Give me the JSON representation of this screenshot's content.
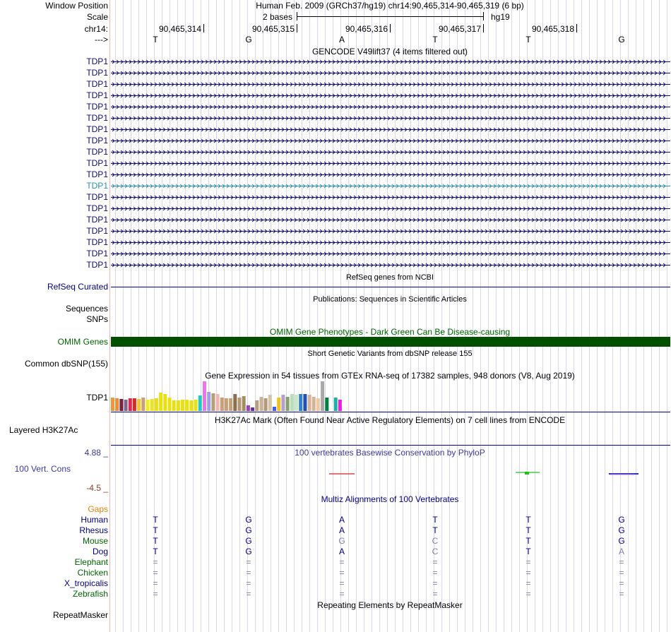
{
  "header": {
    "window_label": "Window Position",
    "window_title": "Human Feb. 2009 (GRCh37/hg19)   chr14:90,465,314-90,465,319 (6 bp)",
    "scale_label": "Scale",
    "scale_value": "2 bases",
    "scale_assembly": "hg19",
    "chrom_label": "chr14:",
    "strand_label": "--->",
    "positions": [
      "90,465,314",
      "90,465,315",
      "90,465,316",
      "90,465,317",
      "90,465,318"
    ],
    "bases": [
      "T",
      "G",
      "A",
      "T",
      "T",
      "G"
    ]
  },
  "gencode": {
    "title": "GENCODE V49lift37 (4 items filtered out)",
    "rows": [
      {
        "label": "TDP1",
        "highlight": false
      },
      {
        "label": "TDP1",
        "highlight": false
      },
      {
        "label": "TDP1",
        "highlight": false
      },
      {
        "label": "TDP1",
        "highlight": false
      },
      {
        "label": "TDP1",
        "highlight": false
      },
      {
        "label": "TDP1",
        "highlight": false
      },
      {
        "label": "TDP1",
        "highlight": false
      },
      {
        "label": "TDP1",
        "highlight": false
      },
      {
        "label": "TDP1",
        "highlight": false
      },
      {
        "label": "TDP1",
        "highlight": false
      },
      {
        "label": "TDP1",
        "highlight": false
      },
      {
        "label": "TDP1",
        "highlight": true
      },
      {
        "label": "TDP1",
        "highlight": false
      },
      {
        "label": "TDP1",
        "highlight": false
      },
      {
        "label": "TDP1",
        "highlight": false
      },
      {
        "label": "TDP1",
        "highlight": false
      },
      {
        "label": "TDP1",
        "highlight": false
      },
      {
        "label": "TDP1",
        "highlight": false
      },
      {
        "label": "TDP1",
        "highlight": false
      }
    ]
  },
  "refseq": {
    "title": "RefSeq genes from NCBI",
    "label": "RefSeq Curated"
  },
  "publications": {
    "title": "Publications: Sequences in Scientific Articles",
    "label_sequences": "Sequences",
    "label_snps": "SNPs"
  },
  "omim": {
    "title": "OMIM Gene Phenotypes - Dark Green Can Be Disease-causing",
    "label": "OMIM Genes",
    "color": "#005000"
  },
  "dbsnp": {
    "title": "Short Genetic Variants from dbSNP release 155",
    "label": "Common dbSNP(155)"
  },
  "gtex": {
    "title": "Gene Expression in 54 tissues from GTEx RNA-seq of 17382 samples, 948 donors (V8, Aug 2019)",
    "label": "TDP1",
    "bars": [
      {
        "value": 0.45,
        "color": "#f0963c"
      },
      {
        "value": 0.42,
        "color": "#f08c32"
      },
      {
        "value": 0.4,
        "color": "#7a2040"
      },
      {
        "value": 0.38,
        "color": "#7a6a88"
      },
      {
        "value": 0.42,
        "color": "#e02850"
      },
      {
        "value": 0.42,
        "color": "#d03020"
      },
      {
        "value": 0.4,
        "color": "#f0c828"
      },
      {
        "value": 0.45,
        "color": "#c8a078"
      },
      {
        "value": 0.38,
        "color": "#f0ec20"
      },
      {
        "value": 0.4,
        "color": "#ece420"
      },
      {
        "value": 0.42,
        "color": "#e8e010"
      },
      {
        "value": 0.62,
        "color": "#e8e010"
      },
      {
        "value": 0.58,
        "color": "#e8e010"
      },
      {
        "value": 0.45,
        "color": "#e8e010"
      },
      {
        "value": 0.35,
        "color": "#e8e010"
      },
      {
        "value": 0.35,
        "color": "#e8e010"
      },
      {
        "value": 0.38,
        "color": "#e8e010"
      },
      {
        "value": 0.38,
        "color": "#e8e010"
      },
      {
        "value": 0.35,
        "color": "#e8e010"
      },
      {
        "value": 0.38,
        "color": "#e8e010"
      },
      {
        "value": 0.52,
        "color": "#20c8c8"
      },
      {
        "value": 1.0,
        "color": "#e878e8"
      },
      {
        "value": 0.65,
        "color": "#a0a0e8"
      },
      {
        "value": 0.6,
        "color": "#b4a078"
      },
      {
        "value": 0.58,
        "color": "#f0b4b4"
      },
      {
        "value": 0.45,
        "color": "#c8a078"
      },
      {
        "value": 0.42,
        "color": "#c8a078"
      },
      {
        "value": 0.42,
        "color": "#c8a078"
      },
      {
        "value": 0.58,
        "color": "#887050"
      },
      {
        "value": 0.45,
        "color": "#b49878"
      },
      {
        "value": 0.5,
        "color": "#a09060"
      },
      {
        "value": 0.18,
        "color": "#a040c0"
      },
      {
        "value": 0.12,
        "color": "#6030a0"
      },
      {
        "value": 0.35,
        "color": "#b4a080"
      },
      {
        "value": 0.48,
        "color": "#c8b498"
      },
      {
        "value": 0.42,
        "color": "#b49878"
      },
      {
        "value": 0.55,
        "color": "#d4c4a8"
      },
      {
        "value": 0.15,
        "color": "#4060f0"
      },
      {
        "value": 0.45,
        "color": "#f0c020"
      },
      {
        "value": 0.55,
        "color": "#b4a0c8"
      },
      {
        "value": 0.48,
        "color": "#88a070"
      },
      {
        "value": 0.58,
        "color": "#b4e0b4"
      },
      {
        "value": 0.55,
        "color": "#c8e8c8"
      },
      {
        "value": 0.58,
        "color": "#3080d0"
      },
      {
        "value": 0.58,
        "color": "#2050b0"
      },
      {
        "value": 0.55,
        "color": "#d4b498"
      },
      {
        "value": 0.48,
        "color": "#d4b498"
      },
      {
        "value": 0.42,
        "color": "#f0c8a0"
      },
      {
        "value": 1.0,
        "color": "#a8a8a8"
      },
      {
        "value": 0.45,
        "color": "#008040"
      },
      {
        "value": 0.28,
        "color": "#ffffff"
      },
      {
        "value": 0.45,
        "color": "#20b0a0"
      },
      {
        "value": 0.38,
        "color": "#e820e8"
      }
    ]
  },
  "h3k27ac": {
    "title": "H3K27Ac Mark (Often Found Near Active Regulatory Elements) on 7 cell lines from ENCODE",
    "label": "Layered H3K27Ac"
  },
  "phylop": {
    "title": "100 vertebrates Basewise Conservation by PhyloP",
    "label": "100 Vert. Cons",
    "max_label": "4.88 _",
    "min_label": "-4.5 _"
  },
  "multiz": {
    "title": "Multiz Alignments of 100 Vertebrates",
    "gaps_label": "Gaps",
    "species": [
      {
        "name": "Human",
        "bases": [
          "T",
          "G",
          "A",
          "T",
          "T",
          "G"
        ],
        "dim": [
          false,
          false,
          false,
          false,
          false,
          false
        ],
        "color": "#000080"
      },
      {
        "name": "Rhesus",
        "bases": [
          "T",
          "G",
          "A",
          "T",
          "T",
          "G"
        ],
        "dim": [
          false,
          false,
          false,
          false,
          false,
          false
        ],
        "color": "#000080"
      },
      {
        "name": "Mouse",
        "bases": [
          "T",
          "G",
          "G",
          "C",
          "T",
          "G"
        ],
        "dim": [
          false,
          false,
          true,
          true,
          false,
          false
        ],
        "color": "#006400"
      },
      {
        "name": "Dog",
        "bases": [
          "T",
          "G",
          "A",
          "C",
          "T",
          "A"
        ],
        "dim": [
          false,
          false,
          false,
          true,
          false,
          true
        ],
        "color": "#000080"
      },
      {
        "name": "Elephant",
        "bases": [
          "=",
          "=",
          "=",
          "=",
          "=",
          "="
        ],
        "dim": [
          true,
          true,
          true,
          true,
          true,
          true
        ],
        "color": "#006400"
      },
      {
        "name": "Chicken",
        "bases": [
          "=",
          "=",
          "=",
          "=",
          "=",
          "="
        ],
        "dim": [
          true,
          true,
          true,
          true,
          true,
          true
        ],
        "color": "#006400"
      },
      {
        "name": "X_tropicalis",
        "bases": [
          "=",
          "=",
          "=",
          "=",
          "=",
          "="
        ],
        "dim": [
          true,
          true,
          true,
          true,
          true,
          true
        ],
        "color": "#000080"
      },
      {
        "name": "Zebrafish",
        "bases": [
          "=",
          "=",
          "=",
          "=",
          "=",
          "="
        ],
        "dim": [
          true,
          true,
          true,
          true,
          true,
          true
        ],
        "color": "#006400"
      }
    ]
  },
  "repeatmasker": {
    "title": "Repeating Elements by RepeatMasker",
    "label": "RepeatMasker"
  }
}
